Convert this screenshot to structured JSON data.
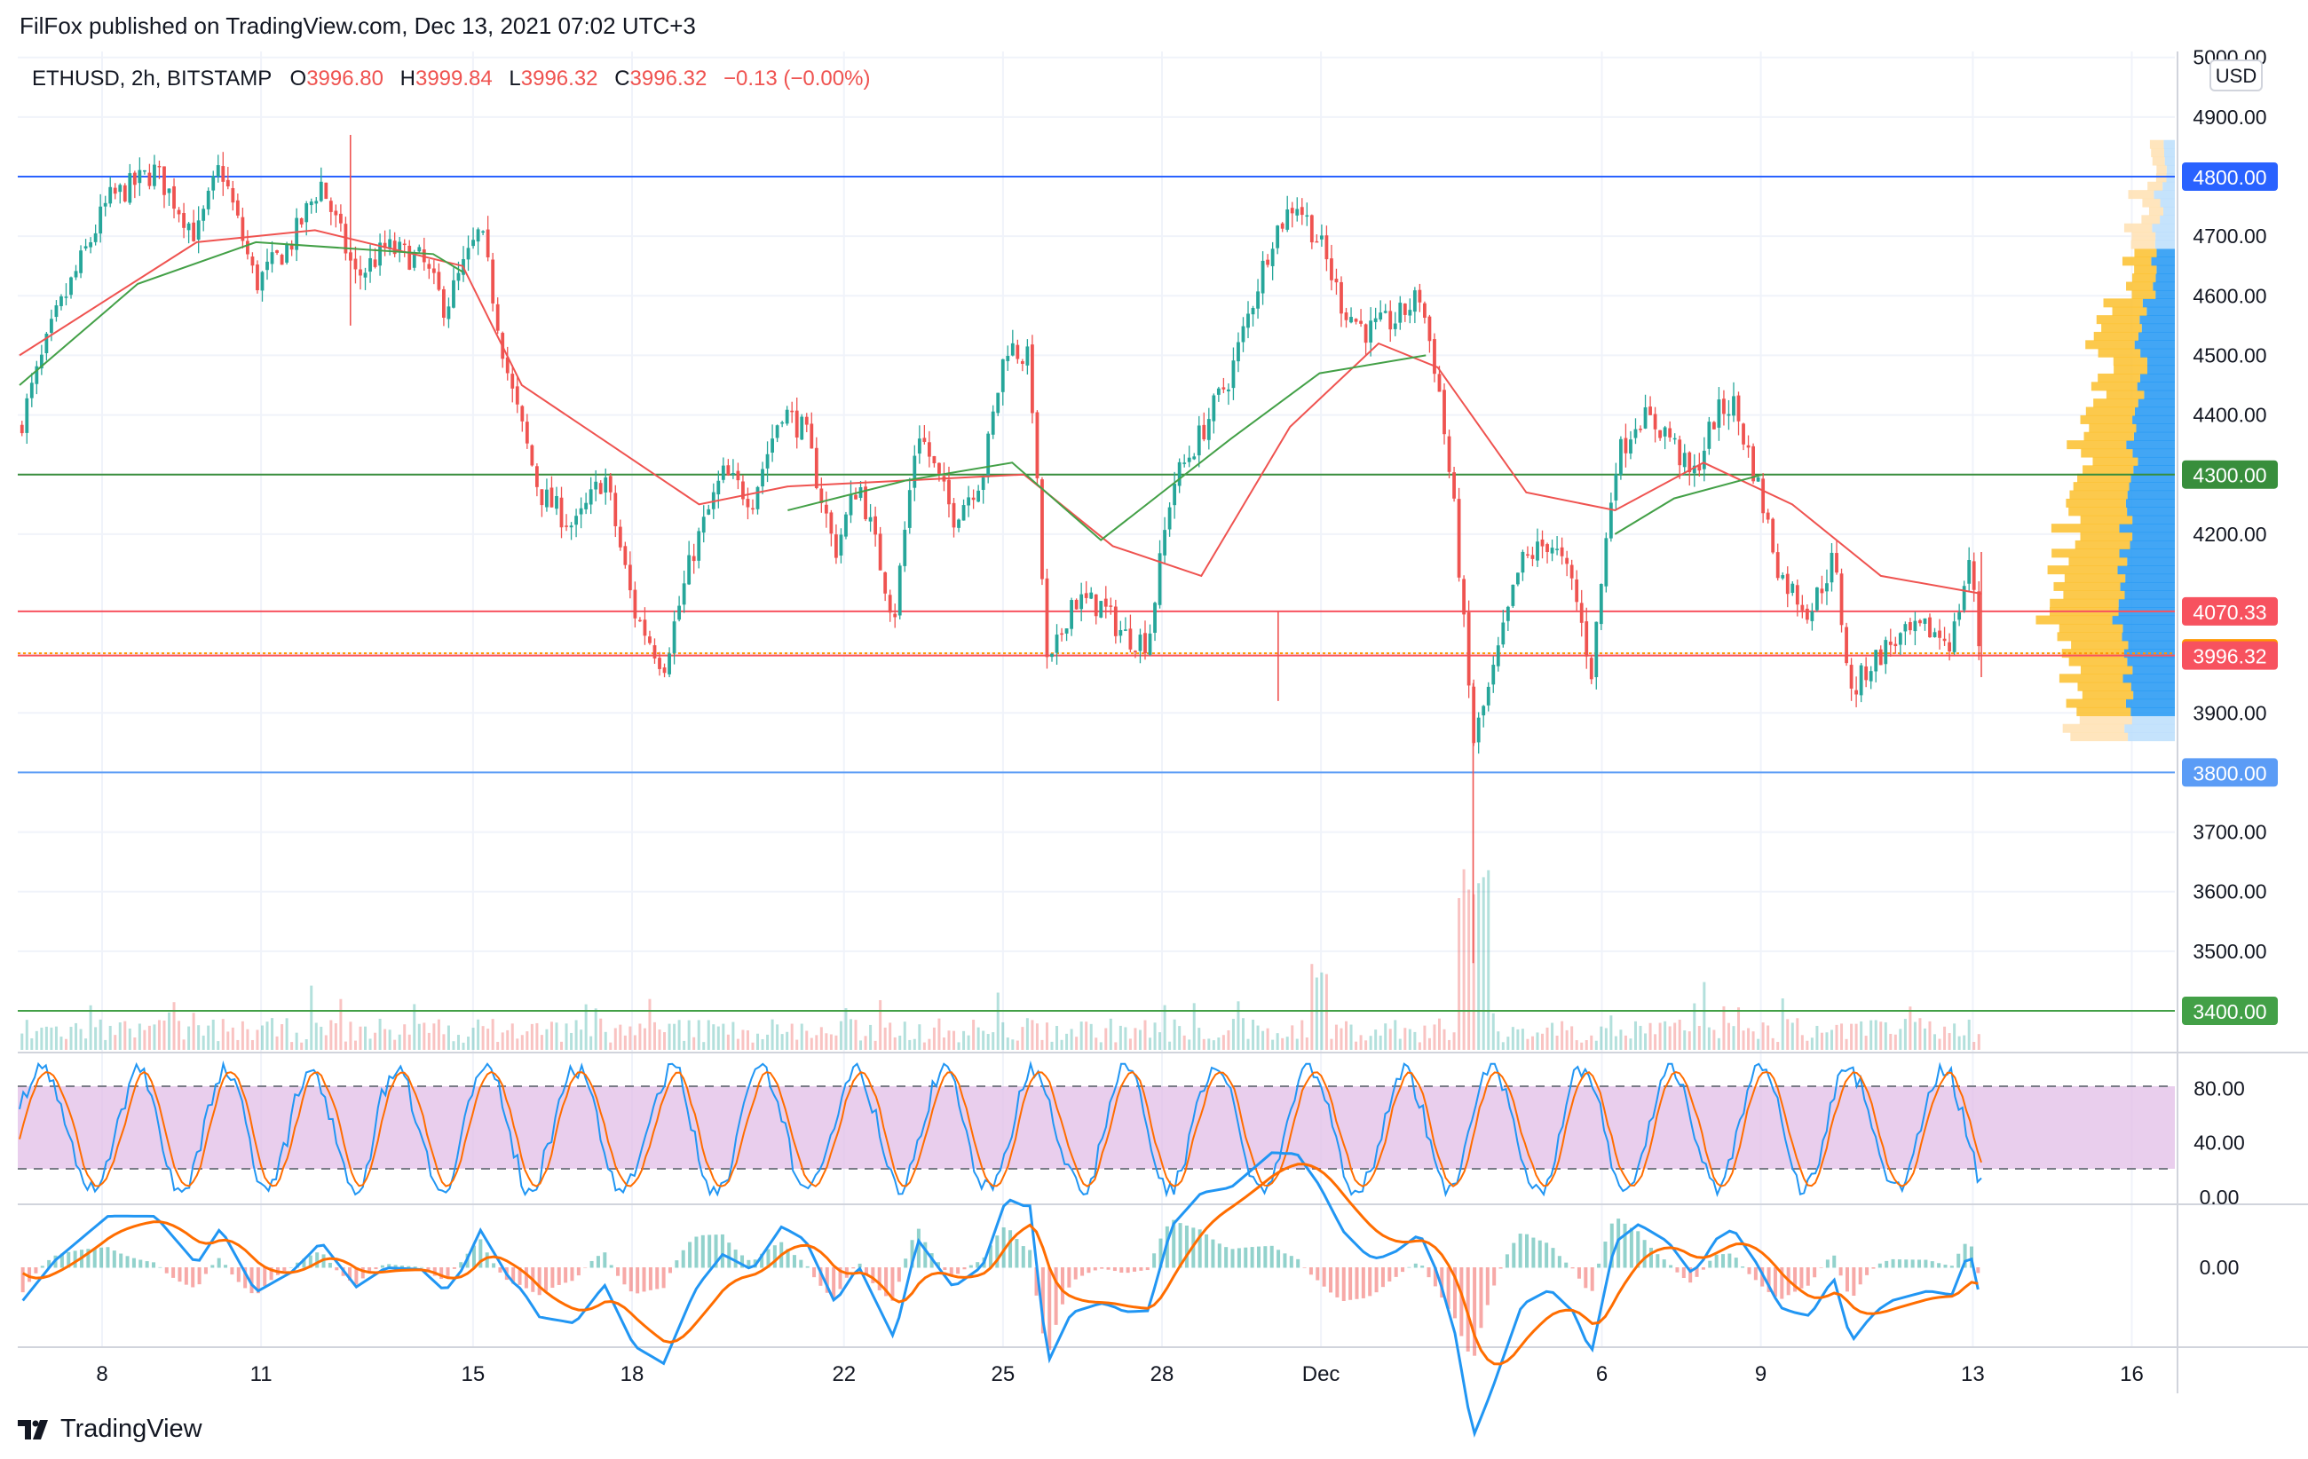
{
  "header": {
    "published_by": "FilFox published on TradingView.com, Dec 13, 2021 07:02 UTC+3",
    "symbol": "ETHUSD, 2h, BITSTAMP",
    "ohlc": {
      "o_label": "O",
      "o_value": "3996.80",
      "h_label": "H",
      "h_value": "3999.84",
      "l_label": "L",
      "l_value": "3996.32",
      "c_label": "C",
      "c_value": "3996.32",
      "change": "−0.13 (−0.00%)"
    }
  },
  "footer": {
    "brand": "TradingView"
  },
  "colors": {
    "up": "#26a69a",
    "down": "#ef5350",
    "ema_fast": "#ef5350",
    "ema_slow": "#43a047",
    "line_blue": "#2962ff",
    "line_green": "#388e3c",
    "line_red": "#f7525f",
    "line_orange": "#ff9800",
    "stoch_band": "#e1bee7",
    "macd": "#2196f3",
    "signal": "#ff6d00"
  },
  "chart_data": {
    "type": "candlestick",
    "price_axis": {
      "currency": "USD",
      "ticks": [
        "5000.00",
        "4900.00",
        "4700.00",
        "4600.00",
        "4500.00",
        "4400.00",
        "4200.00",
        "3900.00",
        "3700.00",
        "3600.00",
        "3500.00"
      ],
      "ylim": [
        3330,
        5010
      ]
    },
    "x_axis_labels": [
      "8",
      "11",
      "15",
      "18",
      "22",
      "25",
      "28",
      "Dec",
      "6",
      "9",
      "13",
      "16"
    ],
    "horizontal_levels": [
      {
        "value": 4800,
        "label": "4800.00",
        "color": "#2962ff"
      },
      {
        "value": 4300,
        "label": "4300.00",
        "color": "#388e3c"
      },
      {
        "value": 4070.33,
        "label": "4070.33",
        "color": "#f7525f"
      },
      {
        "value": 4000,
        "label": "4000.00",
        "color": "#ff9800"
      },
      {
        "value": 3996.32,
        "label": "3996.32",
        "color": "#f7525f"
      },
      {
        "value": 3800,
        "label": "3800.00",
        "color": "#5b9cf6"
      },
      {
        "value": 3400,
        "label": "3400.00",
        "color": "#43a047"
      }
    ],
    "price_path": [
      {
        "day": 5.0,
        "price": 4380
      },
      {
        "day": 5.6,
        "price": 4560
      },
      {
        "day": 6.5,
        "price": 4760
      },
      {
        "day": 7.3,
        "price": 4810
      },
      {
        "day": 8.0,
        "price": 4700
      },
      {
        "day": 8.4,
        "price": 4820
      },
      {
        "day": 9.0,
        "price": 4620
      },
      {
        "day": 9.6,
        "price": 4690
      },
      {
        "day": 10.1,
        "price": 4790
      },
      {
        "day": 10.7,
        "price": 4630
      },
      {
        "day": 11.2,
        "price": 4680
      },
      {
        "day": 11.8,
        "price": 4660
      },
      {
        "day": 12.2,
        "price": 4580
      },
      {
        "day": 12.8,
        "price": 4710
      },
      {
        "day": 13.3,
        "price": 4450
      },
      {
        "day": 13.8,
        "price": 4270
      },
      {
        "day": 14.4,
        "price": 4210
      },
      {
        "day": 14.9,
        "price": 4300
      },
      {
        "day": 15.4,
        "price": 4070
      },
      {
        "day": 15.9,
        "price": 3980
      },
      {
        "day": 16.4,
        "price": 4170
      },
      {
        "day": 16.9,
        "price": 4300
      },
      {
        "day": 17.4,
        "price": 4260
      },
      {
        "day": 17.9,
        "price": 4410
      },
      {
        "day": 18.3,
        "price": 4370
      },
      {
        "day": 18.8,
        "price": 4170
      },
      {
        "day": 19.2,
        "price": 4290
      },
      {
        "day": 19.8,
        "price": 4060
      },
      {
        "day": 20.2,
        "price": 4380
      },
      {
        "day": 20.8,
        "price": 4230
      },
      {
        "day": 21.3,
        "price": 4300
      },
      {
        "day": 21.7,
        "price": 4520
      },
      {
        "day": 22.1,
        "price": 4490
      },
      {
        "day": 22.4,
        "price": 3960
      },
      {
        "day": 22.8,
        "price": 4090
      },
      {
        "day": 23.3,
        "price": 4080
      },
      {
        "day": 23.7,
        "price": 4030
      },
      {
        "day": 24.1,
        "price": 4020
      },
      {
        "day": 24.5,
        "price": 4280
      },
      {
        "day": 25.0,
        "price": 4370
      },
      {
        "day": 25.5,
        "price": 4470
      },
      {
        "day": 26.2,
        "price": 4700
      },
      {
        "day": 26.6,
        "price": 4760
      },
      {
        "day": 27.0,
        "price": 4690
      },
      {
        "day": 27.4,
        "price": 4580
      },
      {
        "day": 27.8,
        "price": 4540
      },
      {
        "day": 28.3,
        "price": 4560
      },
      {
        "day": 28.7,
        "price": 4600
      },
      {
        "day": 29.0,
        "price": 4460
      },
      {
        "day": 29.3,
        "price": 4220
      },
      {
        "day": 29.6,
        "price": 3850
      },
      {
        "day": 29.9,
        "price": 3950
      },
      {
        "day": 30.4,
        "price": 4150
      },
      {
        "day": 30.9,
        "price": 4190
      },
      {
        "day": 31.3,
        "price": 4110
      },
      {
        "day": 31.6,
        "price": 3970
      },
      {
        "day": 32.0,
        "price": 4320
      },
      {
        "day": 32.4,
        "price": 4400
      },
      {
        "day": 32.9,
        "price": 4370
      },
      {
        "day": 33.3,
        "price": 4290
      },
      {
        "day": 33.7,
        "price": 4400
      },
      {
        "day": 34.0,
        "price": 4420
      },
      {
        "day": 34.4,
        "price": 4290
      },
      {
        "day": 34.8,
        "price": 4130
      },
      {
        "day": 35.3,
        "price": 4070
      },
      {
        "day": 35.7,
        "price": 4160
      },
      {
        "day": 36.0,
        "price": 3930
      },
      {
        "day": 36.3,
        "price": 3980
      },
      {
        "day": 36.7,
        "price": 4020
      },
      {
        "day": 37.3,
        "price": 4040
      },
      {
        "day": 37.7,
        "price": 4020
      },
      {
        "day": 38.0,
        "price": 4160
      },
      {
        "day": 38.2,
        "price": 3980
      }
    ],
    "ema_fast_path": [
      {
        "day": 5.0,
        "price": 4500
      },
      {
        "day": 8.0,
        "price": 4690
      },
      {
        "day": 10.0,
        "price": 4710
      },
      {
        "day": 12.5,
        "price": 4650
      },
      {
        "day": 13.5,
        "price": 4450
      },
      {
        "day": 15.0,
        "price": 4350
      },
      {
        "day": 16.5,
        "price": 4250
      },
      {
        "day": 18.0,
        "price": 4280
      },
      {
        "day": 20.0,
        "price": 4290
      },
      {
        "day": 22.0,
        "price": 4300
      },
      {
        "day": 23.5,
        "price": 4180
      },
      {
        "day": 25.0,
        "price": 4130
      },
      {
        "day": 26.5,
        "price": 4380
      },
      {
        "day": 28.0,
        "price": 4520
      },
      {
        "day": 29.0,
        "price": 4480
      },
      {
        "day": 30.5,
        "price": 4270
      },
      {
        "day": 32.0,
        "price": 4240
      },
      {
        "day": 33.5,
        "price": 4320
      },
      {
        "day": 35.0,
        "price": 4250
      },
      {
        "day": 36.5,
        "price": 4130
      },
      {
        "day": 38.2,
        "price": 4100
      }
    ],
    "ema_slow_path": [
      {
        "day": 5.0,
        "price": 4450
      },
      {
        "day": 7.0,
        "price": 4620
      },
      {
        "day": 9.0,
        "price": 4690
      },
      {
        "day": 12.0,
        "price": 4670
      },
      {
        "day": 12.5,
        "price": 4640
      }
    ],
    "ema_slow_path_2": [
      {
        "day": 18.0,
        "price": 4240
      },
      {
        "day": 20.0,
        "price": 4290
      },
      {
        "day": 21.8,
        "price": 4320
      },
      {
        "day": 23.3,
        "price": 4190
      },
      {
        "day": 25.5,
        "price": 4360
      },
      {
        "day": 27.0,
        "price": 4470
      },
      {
        "day": 28.8,
        "price": 4500
      }
    ],
    "ema_slow_path_3": [
      {
        "day": 32.0,
        "price": 4200
      },
      {
        "day": 33.0,
        "price": 4260
      },
      {
        "day": 34.5,
        "price": 4300
      }
    ],
    "stoch": {
      "upper": 80,
      "lower": 20,
      "ticks": [
        "80.00",
        "40.00",
        "0.00"
      ]
    },
    "macd": {
      "ticks": [
        "0.00"
      ]
    }
  }
}
